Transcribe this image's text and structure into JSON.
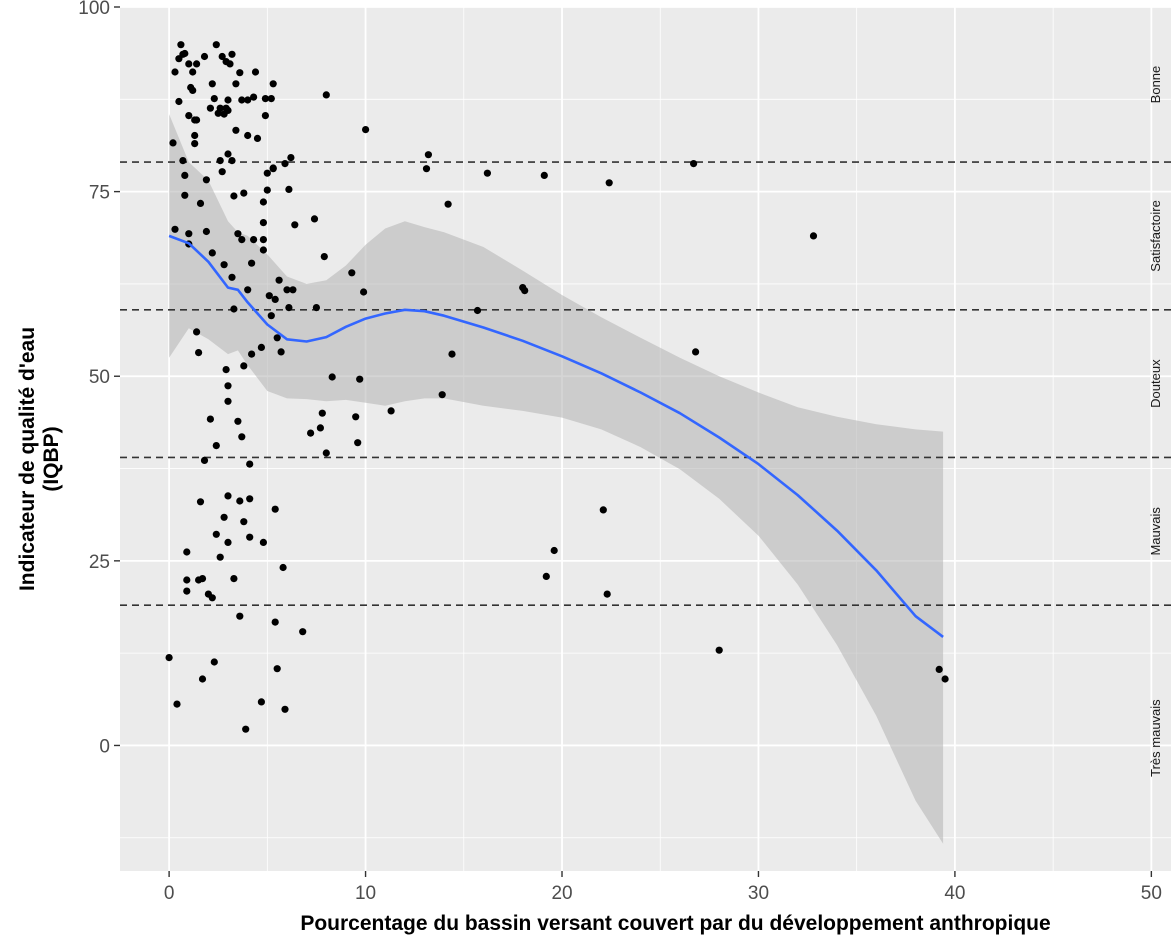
{
  "chart_data": {
    "type": "scatter",
    "title": "",
    "xlabel": "Pourcentage du bassin versant couvert par du développement anthropique",
    "ylabel_lines": [
      "Indicateur de qualité d'eau",
      "(IQBP)"
    ],
    "xlim": [
      -2.5,
      51
    ],
    "ylim": [
      -17,
      100
    ],
    "x_ticks": [
      0,
      10,
      20,
      30,
      40,
      50
    ],
    "x_tick_labels": [
      "0",
      "10",
      "20",
      "30",
      "40",
      "50"
    ],
    "y_ticks": [
      0,
      25,
      50,
      75,
      100
    ],
    "y_tick_labels": [
      "0",
      "25",
      "50",
      "75",
      "100"
    ],
    "grid": true,
    "panel_background": "#ebebeb",
    "grid_color": "#ffffff",
    "point_color": "#000000",
    "smooth_color": "#3366ff",
    "band_fill": "#b3b3b3",
    "threshold_lines": [
      79,
      59,
      39,
      19
    ],
    "threshold_style": "dashed",
    "category_labels": [
      {
        "label": "Bonne",
        "y_from": 79,
        "y_to": 100
      },
      {
        "label": "Satisfactoire",
        "y_from": 59,
        "y_to": 79
      },
      {
        "label": "Douteux",
        "y_from": 39,
        "y_to": 59
      },
      {
        "label": "Mauvais",
        "y_from": 19,
        "y_to": 39
      },
      {
        "label": "Très mauvais",
        "y_from": -17,
        "y_to": 19
      }
    ],
    "points": [
      [
        0.0,
        11.9
      ],
      [
        0.2,
        81.6
      ],
      [
        0.3,
        91.2
      ],
      [
        0.3,
        69.9
      ],
      [
        0.4,
        5.6
      ],
      [
        0.5,
        93.0
      ],
      [
        0.5,
        87.2
      ],
      [
        0.6,
        94.9
      ],
      [
        0.7,
        93.6
      ],
      [
        0.7,
        79.2
      ],
      [
        0.8,
        77.2
      ],
      [
        0.8,
        74.5
      ],
      [
        0.8,
        93.7
      ],
      [
        0.9,
        22.4
      ],
      [
        0.9,
        20.9
      ],
      [
        0.9,
        26.2
      ],
      [
        1.0,
        92.3
      ],
      [
        1.0,
        69.3
      ],
      [
        1.0,
        85.3
      ],
      [
        1.0,
        67.9
      ],
      [
        1.1,
        89.1
      ],
      [
        1.2,
        91.2
      ],
      [
        1.2,
        88.7
      ],
      [
        1.3,
        84.7
      ],
      [
        1.3,
        82.6
      ],
      [
        1.3,
        81.5
      ],
      [
        1.4,
        92.3
      ],
      [
        1.4,
        84.7
      ],
      [
        1.4,
        56.0
      ],
      [
        1.5,
        53.2
      ],
      [
        1.5,
        22.4
      ],
      [
        1.6,
        73.4
      ],
      [
        1.6,
        33.0
      ],
      [
        1.7,
        9.0
      ],
      [
        1.7,
        22.6
      ],
      [
        1.8,
        38.6
      ],
      [
        1.8,
        93.3
      ],
      [
        1.9,
        76.6
      ],
      [
        1.9,
        69.6
      ],
      [
        2.0,
        20.5
      ],
      [
        2.1,
        44.2
      ],
      [
        2.1,
        86.3
      ],
      [
        2.2,
        89.6
      ],
      [
        2.2,
        20.0
      ],
      [
        2.2,
        66.7
      ],
      [
        2.3,
        11.3
      ],
      [
        2.3,
        87.6
      ],
      [
        2.4,
        40.6
      ],
      [
        2.4,
        28.6
      ],
      [
        2.4,
        94.9
      ],
      [
        2.5,
        85.6
      ],
      [
        2.6,
        79.2
      ],
      [
        2.6,
        86.3
      ],
      [
        2.6,
        25.5
      ],
      [
        2.7,
        93.3
      ],
      [
        2.7,
        77.7
      ],
      [
        2.8,
        65.1
      ],
      [
        2.8,
        30.9
      ],
      [
        2.8,
        85.5
      ],
      [
        2.9,
        50.9
      ],
      [
        2.9,
        92.6
      ],
      [
        2.9,
        86.3
      ],
      [
        3.0,
        87.4
      ],
      [
        3.0,
        80.1
      ],
      [
        3.0,
        48.7
      ],
      [
        3.0,
        46.6
      ],
      [
        3.0,
        33.8
      ],
      [
        3.0,
        27.5
      ],
      [
        3.0,
        86.0
      ],
      [
        3.1,
        92.3
      ],
      [
        3.2,
        79.2
      ],
      [
        3.2,
        93.6
      ],
      [
        3.2,
        63.4
      ],
      [
        3.3,
        59.1
      ],
      [
        3.3,
        74.4
      ],
      [
        3.3,
        22.6
      ],
      [
        3.4,
        89.6
      ],
      [
        3.4,
        83.3
      ],
      [
        3.5,
        69.3
      ],
      [
        3.5,
        43.9
      ],
      [
        3.6,
        91.1
      ],
      [
        3.6,
        17.5
      ],
      [
        3.6,
        33.1
      ],
      [
        3.7,
        68.5
      ],
      [
        3.7,
        41.8
      ],
      [
        3.7,
        87.4
      ],
      [
        3.8,
        74.8
      ],
      [
        3.8,
        51.4
      ],
      [
        3.8,
        30.3
      ],
      [
        3.9,
        2.2
      ],
      [
        4.0,
        61.7
      ],
      [
        4.0,
        87.4
      ],
      [
        4.0,
        82.6
      ],
      [
        4.1,
        28.2
      ],
      [
        4.1,
        38.1
      ],
      [
        4.1,
        33.4
      ],
      [
        4.2,
        65.3
      ],
      [
        4.2,
        53.0
      ],
      [
        4.3,
        68.5
      ],
      [
        4.3,
        87.8
      ],
      [
        4.4,
        91.2
      ],
      [
        4.5,
        82.2
      ],
      [
        4.7,
        5.9
      ],
      [
        4.7,
        53.9
      ],
      [
        4.8,
        27.5
      ],
      [
        4.8,
        73.6
      ],
      [
        4.8,
        70.8
      ],
      [
        4.8,
        68.5
      ],
      [
        4.8,
        67.1
      ],
      [
        4.9,
        85.3
      ],
      [
        4.9,
        87.6
      ],
      [
        5.0,
        75.2
      ],
      [
        5.0,
        77.5
      ],
      [
        5.1,
        60.9
      ],
      [
        5.2,
        58.2
      ],
      [
        5.2,
        87.6
      ],
      [
        5.3,
        89.6
      ],
      [
        5.3,
        78.2
      ],
      [
        5.3,
        78.1
      ],
      [
        5.4,
        60.4
      ],
      [
        5.4,
        32.0
      ],
      [
        5.4,
        16.7
      ],
      [
        5.5,
        55.2
      ],
      [
        5.5,
        10.4
      ],
      [
        5.6,
        63.0
      ],
      [
        5.7,
        53.3
      ],
      [
        5.8,
        24.1
      ],
      [
        5.9,
        4.9
      ],
      [
        5.9,
        78.8
      ],
      [
        6.0,
        61.7
      ],
      [
        6.1,
        59.3
      ],
      [
        6.1,
        75.3
      ],
      [
        6.2,
        79.6
      ],
      [
        6.3,
        61.7
      ],
      [
        6.4,
        70.5
      ],
      [
        6.8,
        15.4
      ],
      [
        7.2,
        42.3
      ],
      [
        7.4,
        71.3
      ],
      [
        7.5,
        59.3
      ],
      [
        7.7,
        43.0
      ],
      [
        7.8,
        45.0
      ],
      [
        7.9,
        66.2
      ],
      [
        8.0,
        39.6
      ],
      [
        8.0,
        88.1
      ],
      [
        8.3,
        49.9
      ],
      [
        9.3,
        64.0
      ],
      [
        9.5,
        44.5
      ],
      [
        9.6,
        41.0
      ],
      [
        9.7,
        49.6
      ],
      [
        9.9,
        61.4
      ],
      [
        10.0,
        83.4
      ],
      [
        11.3,
        45.3
      ],
      [
        13.1,
        78.1
      ],
      [
        13.2,
        80.0
      ],
      [
        13.9,
        47.5
      ],
      [
        14.2,
        73.3
      ],
      [
        14.4,
        53.0
      ],
      [
        15.7,
        58.9
      ],
      [
        16.2,
        77.5
      ],
      [
        18.0,
        62.0
      ],
      [
        18.1,
        61.6
      ],
      [
        19.1,
        77.2
      ],
      [
        19.2,
        22.9
      ],
      [
        19.6,
        26.4
      ],
      [
        22.1,
        31.9
      ],
      [
        22.3,
        20.5
      ],
      [
        22.4,
        76.2
      ],
      [
        26.7,
        78.8
      ],
      [
        26.8,
        53.3
      ],
      [
        28.0,
        12.9
      ],
      [
        32.8,
        69.0
      ],
      [
        39.2,
        10.3
      ],
      [
        39.5,
        9.0
      ]
    ],
    "smooth_x": [
      0,
      1,
      2,
      3,
      3.5,
      4,
      5,
      6,
      7,
      8,
      9,
      10,
      11,
      12,
      13,
      14,
      16,
      18,
      20,
      22,
      24,
      26,
      28,
      30,
      32,
      34,
      36,
      38,
      39.4
    ],
    "smooth_y": [
      69.0,
      68.0,
      65.5,
      62.0,
      61.7,
      60.0,
      57.0,
      55.0,
      54.7,
      55.3,
      56.7,
      57.8,
      58.5,
      59.0,
      58.8,
      58.2,
      56.6,
      54.8,
      52.7,
      50.4,
      47.8,
      45.0,
      41.7,
      38.1,
      33.9,
      29.1,
      23.7,
      17.5,
      14.7
    ],
    "band_upper": [
      85.5,
      79.0,
      76.5,
      71.0,
      69.5,
      69.0,
      66.5,
      63.5,
      62.5,
      63.0,
      65.0,
      67.8,
      70.0,
      71.0,
      70.2,
      69.5,
      67.5,
      64.3,
      61.0,
      58.0,
      55.2,
      52.5,
      50.0,
      47.8,
      45.8,
      44.5,
      43.5,
      42.8,
      42.5
    ],
    "band_lower": [
      52.5,
      56.5,
      55.0,
      53.0,
      53.5,
      51.5,
      48.0,
      47.0,
      46.9,
      46.6,
      46.8,
      46.4,
      46.0,
      46.6,
      47.0,
      47.0,
      46.0,
      45.3,
      44.4,
      42.8,
      40.4,
      37.4,
      33.4,
      28.4,
      21.8,
      13.6,
      4.0,
      -7.5,
      -13.3
    ]
  }
}
